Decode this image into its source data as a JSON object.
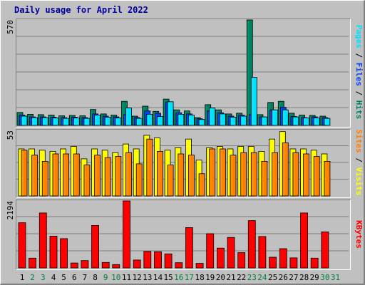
{
  "title": "Daily usage for April 2022",
  "colors": {
    "hits": "#008060",
    "files": "#0040ff",
    "pages": "#00e0ff",
    "visits": "#ffff00",
    "sites": "#ff8000",
    "kbytes": "#ff0000",
    "weekend_label": "#008040",
    "weekday_label": "#000000"
  },
  "chart_data": [
    {
      "type": "bar",
      "title": "",
      "ylim": [
        0,
        570
      ],
      "ymax_label": "570",
      "right_labels": [
        "Pages",
        "Files",
        "Hits"
      ],
      "categories": [
        "1",
        "2",
        "3",
        "4",
        "5",
        "6",
        "7",
        "8",
        "9",
        "10",
        "11",
        "12",
        "13",
        "14",
        "15",
        "16",
        "17",
        "18",
        "19",
        "20",
        "21",
        "22",
        "23",
        "24",
        "25",
        "26",
        "27",
        "28",
        "29",
        "30",
        "31"
      ],
      "series": [
        {
          "name": "Hits",
          "values": [
            70,
            60,
            58,
            56,
            52,
            54,
            52,
            86,
            62,
            56,
            130,
            50,
            104,
            76,
            142,
            84,
            78,
            42,
            112,
            84,
            62,
            66,
            570,
            58,
            124,
            130,
            66,
            56,
            54,
            50,
            0
          ]
        },
        {
          "name": "Files",
          "values": [
            56,
            46,
            46,
            44,
            42,
            44,
            42,
            62,
            50,
            46,
            58,
            42,
            78,
            66,
            126,
            68,
            62,
            36,
            78,
            68,
            50,
            56,
            58,
            46,
            84,
            98,
            48,
            42,
            46,
            42,
            0
          ]
        },
        {
          "name": "Pages",
          "values": [
            50,
            42,
            42,
            40,
            38,
            40,
            38,
            56,
            44,
            40,
            94,
            38,
            60,
            48,
            128,
            60,
            56,
            32,
            94,
            62,
            44,
            50,
            260,
            46,
            84,
            84,
            46,
            40,
            40,
            38,
            0
          ]
        }
      ]
    },
    {
      "type": "bar",
      "title": "",
      "ylim": [
        0,
        53
      ],
      "ymax_label": "53",
      "right_labels": [
        "Sites",
        "Visits"
      ],
      "categories": [
        "1",
        "2",
        "3",
        "4",
        "5",
        "6",
        "7",
        "8",
        "9",
        "10",
        "11",
        "12",
        "13",
        "14",
        "15",
        "16",
        "17",
        "18",
        "19",
        "20",
        "21",
        "22",
        "23",
        "24",
        "25",
        "26",
        "27",
        "28",
        "29",
        "30",
        "31"
      ],
      "series": [
        {
          "name": "Visits",
          "values": [
            38,
            38,
            37,
            36,
            38,
            40,
            30,
            38,
            37,
            35,
            42,
            38,
            49,
            47,
            37,
            39,
            46,
            29,
            39,
            40,
            38,
            40,
            40,
            36,
            46,
            52,
            38,
            38,
            37,
            34,
            0
          ]
        },
        {
          "name": "Sites",
          "values": [
            37,
            33,
            28,
            34,
            34,
            34,
            25,
            33,
            31,
            32,
            35,
            26,
            46,
            36,
            25,
            34,
            33,
            18,
            38,
            38,
            33,
            35,
            35,
            28,
            35,
            43,
            35,
            34,
            32,
            28,
            0
          ]
        }
      ]
    },
    {
      "type": "bar",
      "title": "",
      "ylim": [
        0,
        2194
      ],
      "ymax_label": "2194",
      "right_labels": [
        "KBytes"
      ],
      "categories": [
        "1",
        "2",
        "3",
        "4",
        "5",
        "6",
        "7",
        "8",
        "9",
        "10",
        "11",
        "12",
        "13",
        "14",
        "15",
        "16",
        "17",
        "18",
        "19",
        "20",
        "21",
        "22",
        "23",
        "24",
        "25",
        "26",
        "27",
        "28",
        "29",
        "30",
        "31"
      ],
      "series": [
        {
          "name": "KBytes",
          "values": [
            1480,
            320,
            1800,
            1040,
            960,
            160,
            240,
            1390,
            180,
            110,
            2194,
            260,
            540,
            530,
            460,
            170,
            1320,
            150,
            1120,
            650,
            1000,
            500,
            1550,
            1030,
            350,
            630,
            330,
            1800,
            320,
            1180,
            0
          ]
        }
      ]
    }
  ],
  "weekend_days": [
    2,
    3,
    9,
    10,
    16,
    17,
    23,
    24,
    30,
    31
  ]
}
